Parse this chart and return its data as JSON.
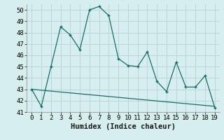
{
  "x": [
    0,
    1,
    2,
    3,
    4,
    5,
    6,
    7,
    8,
    9,
    10,
    11,
    12,
    13,
    14,
    15,
    16,
    17,
    18,
    19
  ],
  "y_main": [
    43,
    41.5,
    45,
    48.5,
    47.8,
    46.5,
    50,
    50.3,
    49.5,
    45.7,
    45.1,
    45,
    46.3,
    43.7,
    42.8,
    45.4,
    43.2,
    43.2,
    44.2,
    41.4
  ],
  "trend_x": [
    0,
    19
  ],
  "trend_y": [
    43.0,
    41.5
  ],
  "xlabel": "Humidex (Indice chaleur)",
  "ylim": [
    41,
    50.5
  ],
  "xlim": [
    -0.5,
    19.5
  ],
  "yticks": [
    41,
    42,
    43,
    44,
    45,
    46,
    47,
    48,
    49,
    50
  ],
  "xticks": [
    0,
    1,
    2,
    3,
    4,
    5,
    6,
    7,
    8,
    9,
    10,
    11,
    12,
    13,
    14,
    15,
    16,
    17,
    18,
    19
  ],
  "line_color": "#1a6b6b",
  "bg_color": "#d6eeee",
  "grid_color": "#b8d8d8",
  "tick_fontsize": 6.5,
  "label_fontsize": 7.5
}
